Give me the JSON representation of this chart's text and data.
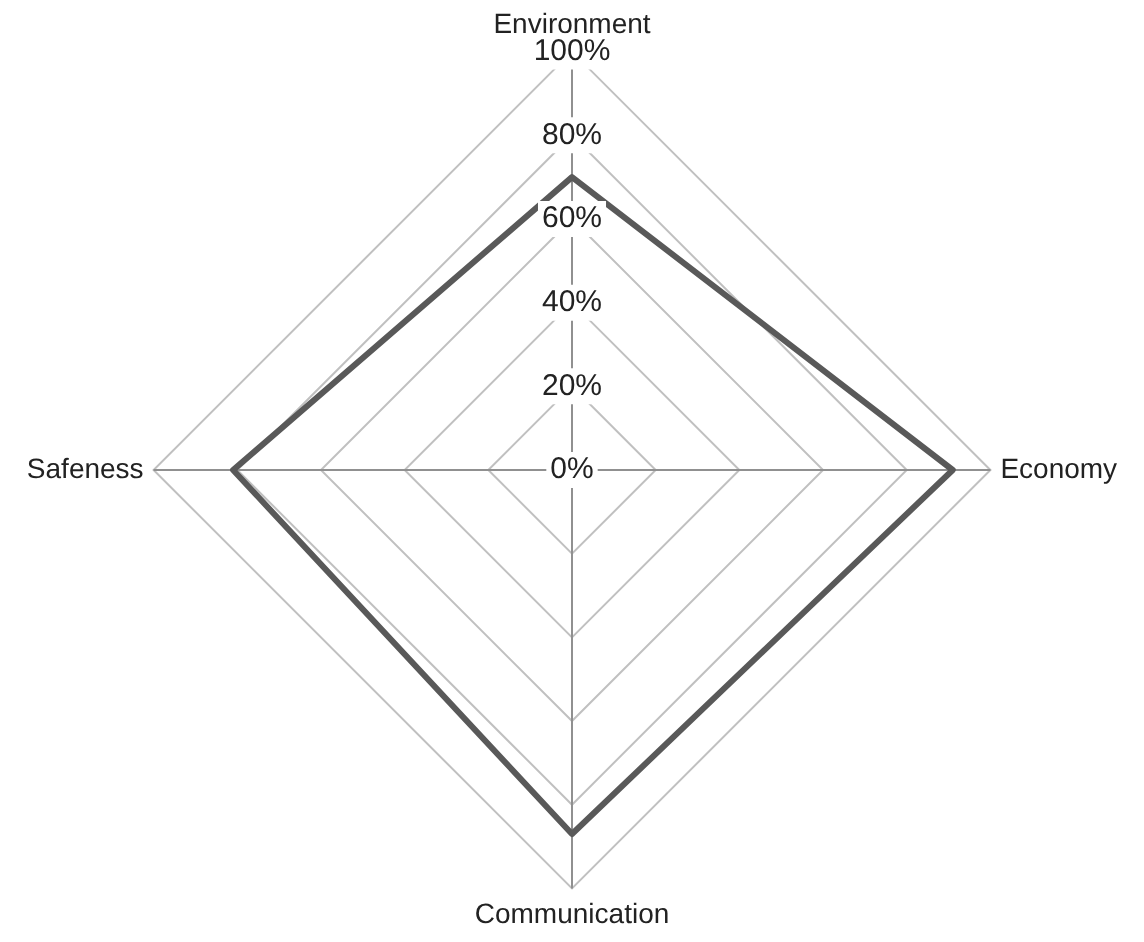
{
  "chart_data": {
    "type": "radar",
    "categories": [
      "Environment",
      "Economy",
      "Communication",
      "Safeness"
    ],
    "series": [
      {
        "color": "#595959",
        "values": [
          70,
          91,
          87,
          81
        ]
      }
    ],
    "ylim": [
      0,
      100
    ],
    "yticks": [
      {
        "value": 0,
        "label": "0%"
      },
      {
        "value": 20,
        "label": "20%"
      },
      {
        "value": 40,
        "label": "40%"
      },
      {
        "value": 60,
        "label": "60%"
      },
      {
        "value": 80,
        "label": "80%"
      },
      {
        "value": 100,
        "label": "100%"
      }
    ],
    "grid": true,
    "legend": false,
    "marker": "none",
    "line_style": "solid"
  }
}
